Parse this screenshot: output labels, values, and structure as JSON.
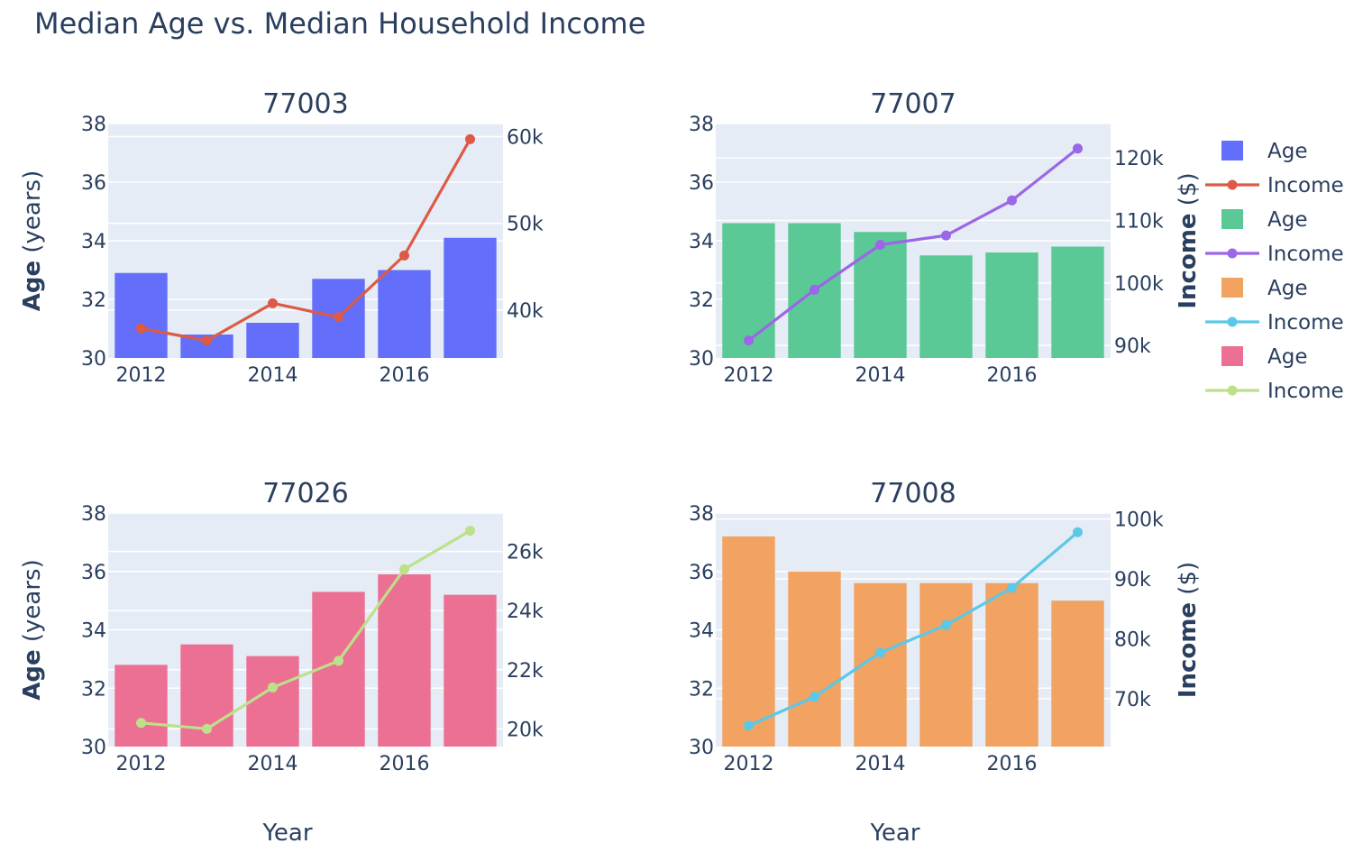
{
  "title": "Median Age vs. Median Household Income",
  "colors": {
    "plot_bg": "#e5ecf6",
    "grid": "#ffffff",
    "text": "#2a3f5f"
  },
  "axis_titles": {
    "age_bold": "Age",
    "age_rest": " (years)",
    "income_bold": "Income",
    "income_rest": " ($)",
    "x": "Year"
  },
  "chart_data": [
    {
      "type": "bar+line",
      "title": "77003",
      "x": [
        2012,
        2013,
        2014,
        2015,
        2016,
        2017
      ],
      "x_ticks": [
        2012,
        2014,
        2016
      ],
      "series": [
        {
          "name": "Age",
          "type": "bar",
          "axis": "y",
          "color": "#636efa",
          "values": [
            32.9,
            30.8,
            31.2,
            32.7,
            33.0,
            34.1
          ]
        },
        {
          "name": "Income",
          "type": "line",
          "axis": "y2",
          "color": "#dd5a45",
          "values": [
            37900,
            36500,
            40800,
            39200,
            46300,
            59700
          ]
        }
      ],
      "ylim": [
        30,
        38
      ],
      "y_ticks": [
        30,
        32,
        34,
        36,
        38
      ],
      "y2lim": [
        34500,
        61500
      ],
      "y2_ticks": [
        40000,
        50000,
        60000
      ],
      "y2_tick_labels": [
        "40k",
        "50k",
        "60k"
      ],
      "show_y_title": true,
      "show_y2_title": false,
      "show_x_title": false
    },
    {
      "type": "bar+line",
      "title": "77007",
      "x": [
        2012,
        2013,
        2014,
        2015,
        2016,
        2017
      ],
      "x_ticks": [
        2012,
        2014,
        2016
      ],
      "series": [
        {
          "name": "Age",
          "type": "bar",
          "axis": "y",
          "color": "#5ac995",
          "values": [
            34.6,
            34.6,
            34.3,
            33.5,
            33.6,
            33.8
          ]
        },
        {
          "name": "Income",
          "type": "line",
          "axis": "y2",
          "color": "#9b66e8",
          "values": [
            90800,
            98900,
            106100,
            107600,
            113200,
            121500
          ]
        }
      ],
      "ylim": [
        30,
        38
      ],
      "y_ticks": [
        30,
        32,
        34,
        36,
        38
      ],
      "y2lim": [
        88000,
        125500
      ],
      "y2_ticks": [
        90000,
        100000,
        110000,
        120000
      ],
      "y2_tick_labels": [
        "90k",
        "100k",
        "110k",
        "120k"
      ],
      "show_y_title": false,
      "show_y2_title": true,
      "show_x_title": false
    },
    {
      "type": "bar+line",
      "title": "77026",
      "x": [
        2012,
        2013,
        2014,
        2015,
        2016,
        2017
      ],
      "x_ticks": [
        2012,
        2014,
        2016
      ],
      "series": [
        {
          "name": "Age",
          "type": "bar",
          "axis": "y",
          "color": "#ec7093",
          "values": [
            32.8,
            33.5,
            33.1,
            35.3,
            35.9,
            35.2
          ]
        },
        {
          "name": "Income",
          "type": "line",
          "axis": "y2",
          "color": "#bde08a",
          "values": [
            20200,
            20000,
            21400,
            22300,
            25400,
            26700
          ]
        }
      ],
      "ylim": [
        30,
        38
      ],
      "y_ticks": [
        30,
        32,
        34,
        36,
        38
      ],
      "y2lim": [
        19400,
        27300
      ],
      "y2_ticks": [
        20000,
        22000,
        24000,
        26000
      ],
      "y2_tick_labels": [
        "20k",
        "22k",
        "24k",
        "26k"
      ],
      "show_y_title": true,
      "show_y2_title": false,
      "show_x_title": true
    },
    {
      "type": "bar+line",
      "title": "77008",
      "x": [
        2012,
        2013,
        2014,
        2015,
        2016,
        2017
      ],
      "x_ticks": [
        2012,
        2014,
        2016
      ],
      "series": [
        {
          "name": "Age",
          "type": "bar",
          "axis": "y",
          "color": "#f2a261",
          "values": [
            37.2,
            36.0,
            35.6,
            35.6,
            35.6,
            35.0
          ]
        },
        {
          "name": "Income",
          "type": "line",
          "axis": "y2",
          "color": "#5cc8e8",
          "values": [
            65500,
            70300,
            77700,
            82300,
            88500,
            97800
          ]
        }
      ],
      "ylim": [
        30,
        38
      ],
      "y_ticks": [
        30,
        32,
        34,
        36,
        38
      ],
      "y2lim": [
        62000,
        101000
      ],
      "y2_ticks": [
        70000,
        80000,
        90000,
        100000
      ],
      "y2_tick_labels": [
        "70k",
        "80k",
        "90k",
        "100k"
      ],
      "show_y_title": false,
      "show_y2_title": true,
      "show_x_title": true
    }
  ],
  "legend": {
    "placement": "right",
    "items": [
      {
        "label": "Age",
        "kind": "bar",
        "color": "#636efa"
      },
      {
        "label": "Income",
        "kind": "line",
        "color": "#dd5a45"
      },
      {
        "label": "Age",
        "kind": "bar",
        "color": "#5ac995"
      },
      {
        "label": "Income",
        "kind": "line",
        "color": "#9b66e8"
      },
      {
        "label": "Age",
        "kind": "bar",
        "color": "#f2a261"
      },
      {
        "label": "Income",
        "kind": "line",
        "color": "#5cc8e8"
      },
      {
        "label": " Age",
        "kind": "bar",
        "color": "#ec7093"
      },
      {
        "label": "Income",
        "kind": "line",
        "color": "#bde08a"
      }
    ]
  }
}
